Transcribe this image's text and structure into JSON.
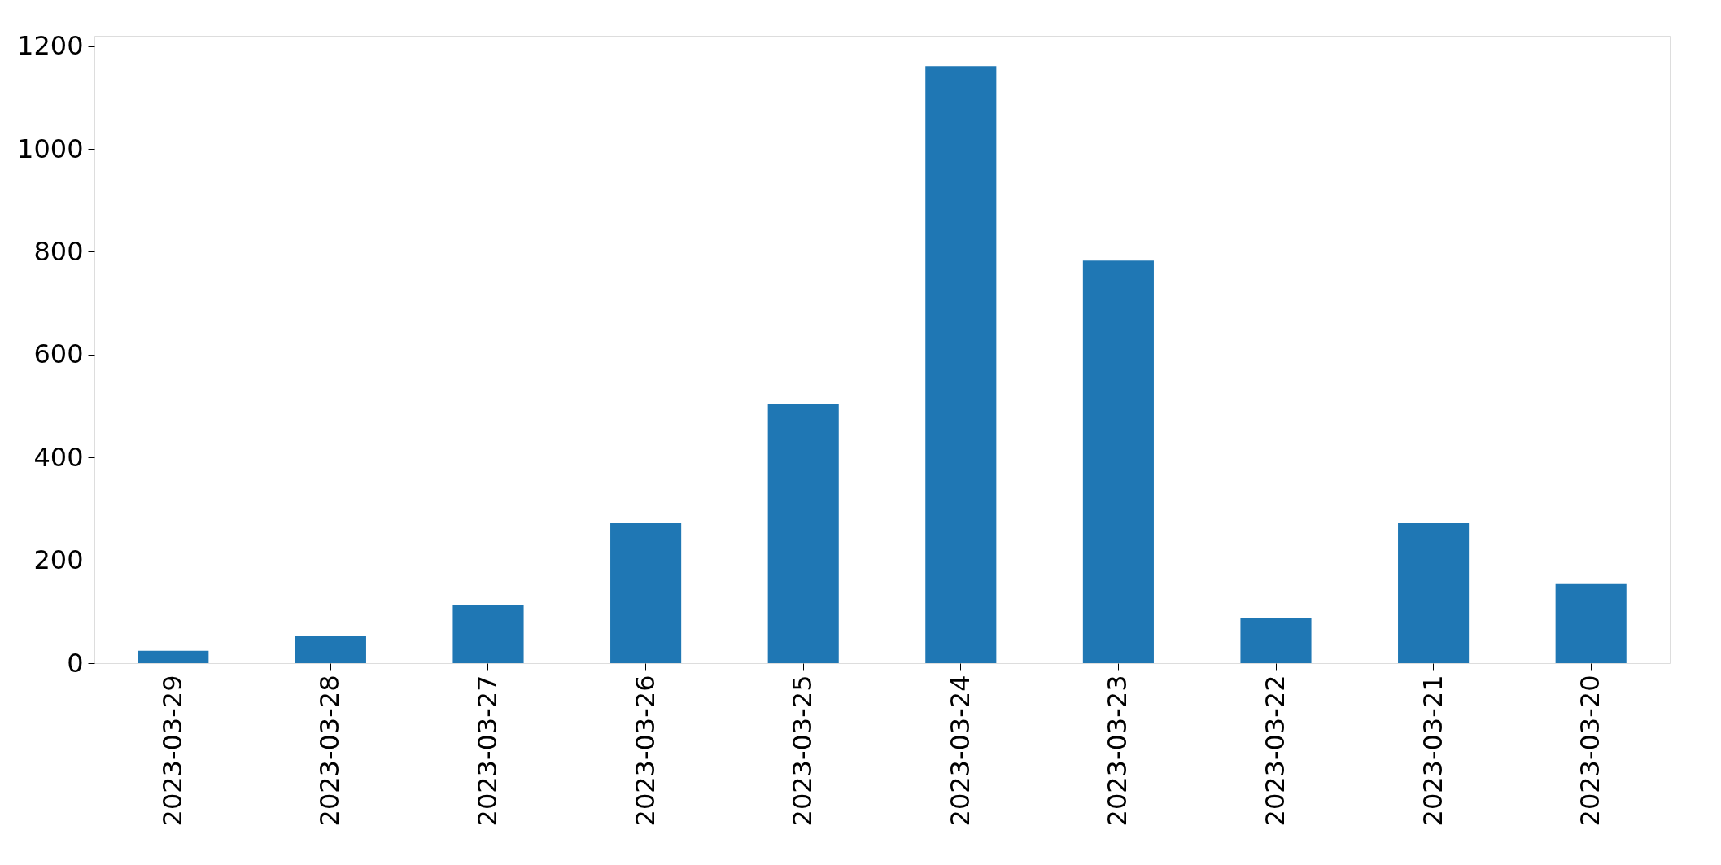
{
  "chart_data": {
    "type": "bar",
    "categories": [
      "2023-03-29",
      "2023-03-28",
      "2023-03-27",
      "2023-03-26",
      "2023-03-25",
      "2023-03-24",
      "2023-03-23",
      "2023-03-22",
      "2023-03-21",
      "2023-03-20"
    ],
    "values": [
      24,
      53,
      113,
      272,
      503,
      1161,
      783,
      88,
      272,
      154
    ],
    "color": "#1f77b4",
    "ylim": [
      0,
      1220
    ],
    "yticks": [
      0,
      200,
      400,
      600,
      800,
      1000,
      1200
    ],
    "grid": false
  }
}
